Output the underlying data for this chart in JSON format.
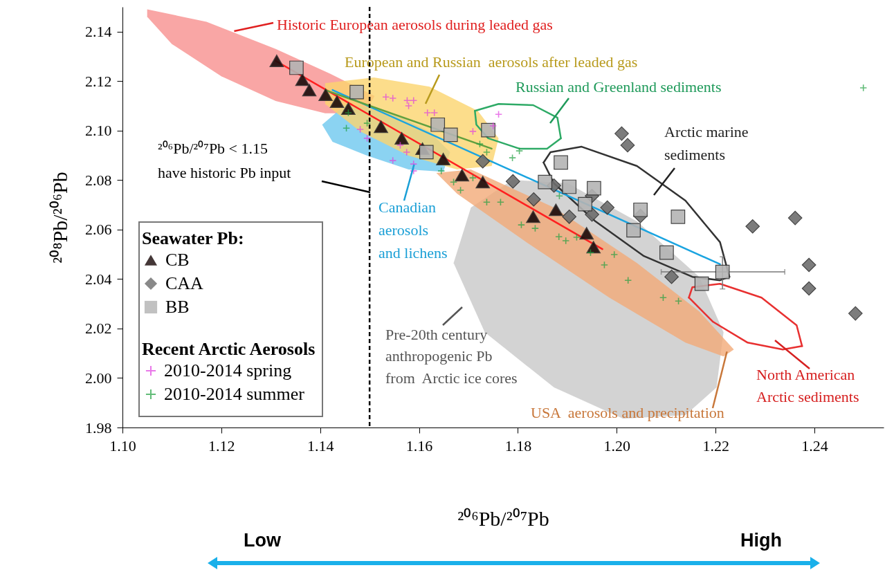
{
  "chart_data": {
    "type": "scatter",
    "xlabel": "²⁰⁶Pb/²⁰⁷Pb",
    "ylabel": "²⁰⁸Pb/²⁰⁶Pb",
    "legend_title": "Seawater Pb:",
    "legend": "bottom left",
    "grid": false,
    "xlim": [
      1.1,
      1.254
    ],
    "ylim": [
      1.98,
      2.15
    ],
    "xticks": [
      {
        "value": 1.1,
        "label": "1.10"
      },
      1.12,
      1.14,
      1.16,
      1.18,
      {
        "value": 1.2,
        "label": "1.20"
      },
      1.22,
      1.24
    ],
    "yticks": [
      {
        "value": 1.98,
        "label": "1.98"
      },
      {
        "value": 2.0,
        "label": "2.00"
      },
      2.02,
      2.04,
      2.06,
      2.08,
      {
        "value": 2.1,
        "label": "2.10"
      },
      2.12,
      2.14
    ],
    "ref_lines": [
      {
        "axis": "x",
        "value": 1.15,
        "color": "#000000",
        "line_style": "dashed"
      }
    ],
    "series": [
      {
        "type": "area",
        "color": "#c8c8c8",
        "x": [
          1.167,
          1.1705,
          1.1789,
          1.1901,
          1.2041,
          1.2167,
          1.2216,
          1.2202,
          1.2139,
          1.2013,
          1.1873,
          1.1733
        ],
        "values": [
          2.0465,
          2.0689,
          2.0801,
          2.0787,
          2.0633,
          2.0409,
          2.0185,
          1.9962,
          1.985,
          1.9836,
          1.9962,
          2.0185
        ]
      },
      {
        "type": "area",
        "color": "#f2aa78",
        "x": [
          1.1635,
          1.1705,
          1.1873,
          1.2041,
          1.2167,
          1.2237,
          1.2216,
          1.2139,
          1.1985,
          1.1817,
          1.1677
        ],
        "values": [
          2.0829,
          2.0843,
          2.0689,
          2.0465,
          2.0269,
          2.0115,
          2.0087,
          2.0143,
          2.0325,
          2.0549,
          2.0745
        ]
      },
      {
        "type": "area",
        "color": "#f7908e",
        "x": [
          1.105,
          1.117,
          1.131,
          1.142,
          1.151,
          1.149,
          1.141,
          1.131,
          1.12,
          1.11,
          1.105
        ],
        "values": [
          2.149,
          2.144,
          2.133,
          2.123,
          2.114,
          2.107,
          2.107,
          2.112,
          2.122,
          2.135,
          2.146
        ]
      },
      {
        "type": "area",
        "color": "#6ec8ef",
        "x": [
          1.1404,
          1.1453,
          1.1537,
          1.1621,
          1.1663,
          1.1649,
          1.1579,
          1.1495,
          1.1425
        ],
        "values": [
          2.1024,
          2.1108,
          2.108,
          2.0997,
          2.0913,
          2.0834,
          2.0843,
          2.0899,
          2.0955
        ]
      },
      {
        "type": "area",
        "color": "#fbd56e",
        "x": [
          1.141,
          1.1509,
          1.1621,
          1.1719,
          1.1761,
          1.1747,
          1.1677,
          1.1579,
          1.1481,
          1.141
        ],
        "values": [
          2.1192,
          2.1215,
          2.1178,
          2.108,
          2.0969,
          2.0857,
          2.0843,
          2.0899,
          2.0997,
          2.1108
        ]
      },
      {
        "type": "line",
        "color": "#2eaa66",
        "x": [
          1.1713,
          1.1761,
          1.1831,
          1.188,
          1.1887
        ],
        "values": [
          2.108,
          2.1108,
          2.1103,
          2.1052,
          2.0969
        ]
      },
      {
        "type": "line",
        "color": "#2eaa66",
        "x": [
          1.1713,
          1.1716,
          1.174,
          1.1803,
          1.1859,
          1.1887
        ],
        "values": [
          2.108,
          2.1024,
          2.0969,
          2.0927,
          2.0927,
          2.0969
        ]
      },
      {
        "type": "line",
        "color": "#333333",
        "x": [
          1.1852,
          1.1866,
          1.1929,
          1.2041,
          1.2139,
          1.2209,
          1.2228
        ],
        "values": [
          2.0871,
          2.0913,
          2.0935,
          2.0857,
          2.0717,
          2.0549,
          2.0409
        ]
      },
      {
        "type": "line",
        "color": "#333333",
        "x": [
          1.1852,
          1.1873,
          1.1957,
          1.2055,
          1.2153,
          1.2209,
          1.2228
        ],
        "values": [
          2.0871,
          2.0787,
          2.0633,
          2.0493,
          2.0409,
          2.0395,
          2.0409
        ]
      },
      {
        "type": "line",
        "color": "#e83030",
        "x": [
          1.2146,
          1.2153,
          1.2209,
          1.2293,
          1.2364,
          1.2375
        ],
        "values": [
          2.0325,
          2.0367,
          2.0381,
          2.0325,
          2.0213,
          2.0129
        ]
      },
      {
        "type": "line",
        "color": "#e83030",
        "x": [
          1.2146,
          1.2195,
          1.2265,
          1.2336,
          1.2375
        ],
        "values": [
          2.0325,
          2.0227,
          2.0143,
          2.0115,
          2.0129
        ]
      },
      {
        "type": "line",
        "color": "#ff2020",
        "x": [
          1.131,
          1.1971
        ],
        "values": [
          2.1282,
          2.0521
        ]
      },
      {
        "type": "line",
        "color": "#1aa4e0",
        "x": [
          1.1425,
          1.2209
        ],
        "values": [
          2.1164,
          2.046
        ]
      },
      {
        "type": "line",
        "color": "#60a040",
        "x": [
          1.141,
          1.1747
        ],
        "values": [
          2.1164,
          2.0927
        ]
      },
      {
        "name": "CB",
        "marker": "triangle",
        "color": "#1a0a0a",
        "x": [
          1.1312,
          1.1364,
          1.1378,
          1.1411,
          1.1434,
          1.1457,
          1.1523,
          1.1565,
          1.1607,
          1.1649,
          1.1687,
          1.1729,
          1.1831,
          1.1877,
          1.1939,
          1.1953
        ],
        "values": [
          2.1282,
          2.1206,
          2.1164,
          2.1145,
          2.1117,
          2.1089,
          2.1016,
          2.0969,
          2.0927,
          2.0885,
          2.082,
          2.0792,
          2.0652,
          2.068,
          2.0585,
          2.0529
        ]
      },
      {
        "name": "CAA",
        "marker": "diamond",
        "color": "#6e6e6e",
        "x": [
          1.1729,
          1.179,
          1.1832,
          1.1873,
          1.1904,
          1.195,
          1.195,
          1.1981,
          1.2048,
          1.2111,
          1.201,
          1.2022,
          1.2275,
          1.2361,
          1.2389,
          1.2389,
          1.2483
        ],
        "values": [
          2.0876,
          2.0795,
          2.0722,
          2.0778,
          2.0652,
          2.0736,
          2.0661,
          2.0689,
          2.0655,
          2.0409,
          2.0988,
          2.0941,
          2.0613,
          2.0647,
          2.0457,
          2.0362,
          2.0261
        ]
      },
      {
        "name": "BB",
        "marker": "square",
        "color": "#b4b4b4",
        "x": [
          1.1352,
          1.1474,
          1.1638,
          1.1664,
          1.174,
          1.1615,
          1.1887,
          1.1855,
          1.1904,
          1.1954,
          1.1936,
          1.2048,
          1.2124,
          1.2034,
          1.2101,
          1.2214,
          1.2172
        ],
        "values": [
          2.1254,
          2.1156,
          2.1024,
          2.0983,
          2.1002,
          2.0913,
          2.0871,
          2.0792,
          2.0773,
          2.0767,
          2.0703,
          2.068,
          2.0652,
          2.0597,
          2.0507,
          2.0429,
          2.0381
        ],
        "xerrors": [
          null,
          null,
          null,
          null,
          null,
          null,
          null,
          null,
          null,
          null,
          null,
          null,
          null,
          null,
          null,
          [
            1.209,
            1.234
          ],
          null
        ],
        "errors": [
          null,
          null,
          null,
          null,
          null,
          null,
          null,
          null,
          null,
          null,
          null,
          null,
          null,
          null,
          null,
          [
            2.036,
            2.049
          ],
          null
        ]
      },
      {
        "name": "2010-2014 spring",
        "marker": "cross",
        "color": "#e040e0",
        "x": [
          1.1533,
          1.1547,
          1.1576,
          1.1589,
          1.1579,
          1.1617,
          1.1631,
          1.1709,
          1.1761,
          1.175,
          1.1481,
          1.1495,
          1.1547,
          1.1589,
          1.1589,
          1.1575,
          1.1562
        ],
        "values": [
          2.1136,
          2.1131,
          2.1122,
          2.1122,
          2.11,
          2.1072,
          2.1072,
          2.0997,
          2.1066,
          2.1019,
          2.1005,
          2.0969,
          2.0879,
          2.0865,
          2.0837,
          2.0913,
          2.0941
        ]
      },
      {
        "name": "2010-2014 summer",
        "marker": "cross",
        "color": "#20a040",
        "x": [
          1.1453,
          1.1457,
          1.1495,
          1.1723,
          1.1737,
          1.1789,
          1.1803,
          1.1645,
          1.167,
          1.1684,
          1.1709,
          1.1737,
          1.1765,
          1.1807,
          1.1835,
          1.1884,
          1.1883,
          1.1897,
          1.1919,
          1.1947,
          1.1975,
          1.1995,
          1.2023,
          1.2094,
          1.2125,
          1.2499
        ],
        "values": [
          2.101,
          2.1072,
          2.103,
          2.0946,
          2.0913,
          2.089,
          2.0918,
          2.0837,
          2.0792,
          2.0759,
          2.0809,
          2.0711,
          2.0711,
          2.0619,
          2.0605,
          2.0736,
          2.0571,
          2.0555,
          2.0569,
          2.0507,
          2.0457,
          2.0499,
          2.0395,
          2.0325,
          2.0311,
          2.1173
        ]
      }
    ],
    "annotations": [
      "Recent Arctic Aerosols",
      "Low",
      "High",
      {
        "text": "Historic European aerosols during leaded gas",
        "x": 1.1226,
        "y": 2.1402
      },
      "European and Russian  aerosols after leaded gas",
      "Russian and Greenland sediments",
      "Arctic marine\nsediments",
      {
        "text": "Canadian\naerosols\nand lichens",
        "x": 1.159,
        "y": 2.0863
      },
      "²⁰⁶Pb/²⁰⁷Pb < 1.15\nhave historic Pb input",
      "Pre-20th century\nanthropogenic Pb\nfrom  Arctic ice cores",
      {
        "text": "USA  aerosols and precipitation",
        "x": 1.2223,
        "y": 2.0107
      },
      "North American\nArctic sediments"
    ]
  }
}
